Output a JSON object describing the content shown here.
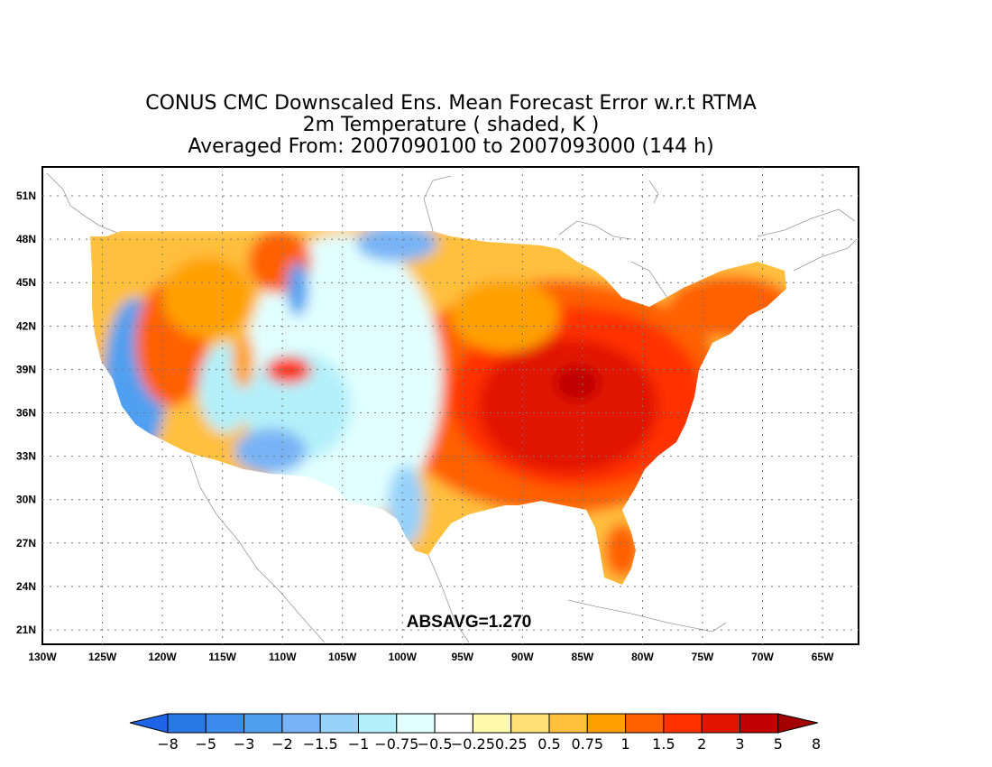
{
  "title": {
    "line1": "CONUS CMC Downscaled Ens. Mean Forecast Error w.r.t RTMA",
    "line2": "2m Temperature ( shaded, K )",
    "line3": "Averaged From: 2007090100 to 2007093000 (144 h)"
  },
  "map": {
    "lon_range": [
      -130,
      -62
    ],
    "lat_range": [
      20,
      53
    ],
    "lon_ticks": [
      "130W",
      "125W",
      "120W",
      "115W",
      "110W",
      "105W",
      "100W",
      "95W",
      "90W",
      "85W",
      "80W",
      "75W",
      "70W",
      "65W"
    ],
    "lat_ticks": [
      "21N",
      "24N",
      "27N",
      "30N",
      "33N",
      "36N",
      "39N",
      "42N",
      "45N",
      "48N",
      "51N"
    ],
    "grid": true,
    "annotation": "ABSAVG=1.270"
  },
  "colorbar": {
    "labels": [
      "-8",
      "-5",
      "-3",
      "-2",
      "-1.5",
      "-1",
      "-0.75",
      "-0.5",
      "-0.25",
      "0.25",
      "0.5",
      "0.75",
      "1",
      "1.5",
      "2",
      "3",
      "5",
      "8"
    ],
    "colors": [
      "#1e64e6",
      "#2878e6",
      "#3c8cf0",
      "#50a0f0",
      "#78b4f5",
      "#96d2fa",
      "#b4f0fa",
      "#e1ffff",
      "#ffffff",
      "#fffaaa",
      "#ffe178",
      "#ffc03c",
      "#ffa000",
      "#ff6000",
      "#ff3200",
      "#e11400",
      "#c00000",
      "#a50000"
    ]
  }
}
